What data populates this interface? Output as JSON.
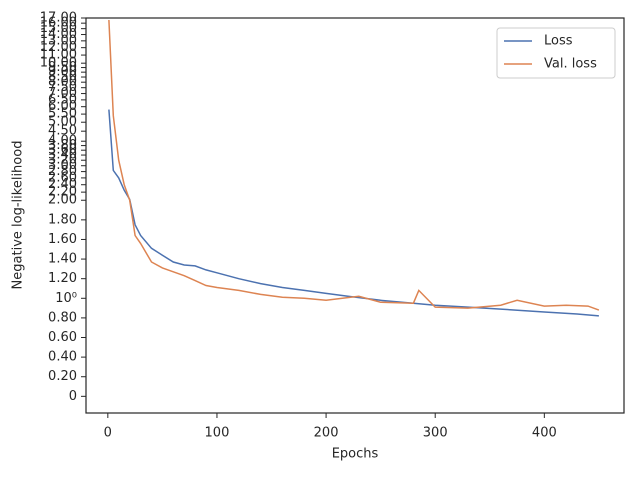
{
  "chart_data": {
    "type": "line",
    "xlabel": "Epochs",
    "ylabel": "Negative log-likelihood",
    "yscale": "symlog",
    "linthresh": 2,
    "xlim": [
      -20,
      473
    ],
    "ylim": [
      -0.17,
      17
    ],
    "xticks": [
      0,
      100,
      200,
      300,
      400
    ],
    "yticks": [
      0,
      {
        "value": 0.2,
        "label": "0.20"
      },
      {
        "value": 0.4,
        "label": "0.40"
      },
      {
        "value": 0.6,
        "label": "0.60"
      },
      {
        "value": 0.8,
        "label": "0.80"
      },
      {
        "value": 1,
        "label": "10⁰"
      },
      {
        "value": 1.2,
        "label": "1.20"
      },
      {
        "value": 1.4,
        "label": "1.40"
      },
      {
        "value": 1.6,
        "label": "1.60"
      },
      {
        "value": 1.8,
        "label": "1.80"
      },
      {
        "value": 2,
        "label": "2.00"
      },
      {
        "value": 2.2,
        "label": "2.20"
      },
      {
        "value": 2.4,
        "label": "2.40"
      },
      {
        "value": 2.6,
        "label": "2.60"
      },
      {
        "value": 2.8,
        "label": "2.80"
      },
      {
        "value": 3,
        "label": "3.00"
      },
      {
        "value": 3.2,
        "label": "3.20"
      },
      {
        "value": 3.4,
        "label": "3.40"
      },
      {
        "value": 3.6,
        "label": "3.60"
      },
      {
        "value": 3.8,
        "label": "3.80"
      },
      {
        "value": 4,
        "label": "4.00"
      },
      {
        "value": 4.5,
        "label": "4.50"
      },
      {
        "value": 5,
        "label": "5.00"
      },
      {
        "value": 5.5,
        "label": "5.50"
      },
      {
        "value": 6,
        "label": "6.00"
      },
      {
        "value": 6.5,
        "label": "6.50"
      },
      {
        "value": 7,
        "label": "7.00"
      },
      {
        "value": 7.5,
        "label": "7.50"
      },
      {
        "value": 8,
        "label": "8.00"
      },
      {
        "value": 8.5,
        "label": "8.50"
      },
      {
        "value": 9,
        "label": "9.00"
      },
      {
        "value": 9.5,
        "label": "9.50"
      },
      {
        "value": 10,
        "label": "10.00"
      },
      {
        "value": 11,
        "label": "11.00"
      },
      {
        "value": 12,
        "label": "12.00"
      },
      {
        "value": 13,
        "label": "13.00"
      },
      {
        "value": 14,
        "label": "14.00"
      },
      {
        "value": 15,
        "label": "15.00"
      },
      {
        "value": 16,
        "label": "16.00"
      },
      {
        "value": 17,
        "label": "17.00"
      }
    ],
    "legend": "upper right",
    "series": [
      {
        "name": "Loss",
        "color": "#4c72b0",
        "x": [
          1,
          5,
          10,
          15,
          20,
          25,
          30,
          40,
          50,
          60,
          70,
          80,
          90,
          100,
          120,
          140,
          160,
          180,
          200,
          220,
          250,
          280,
          300,
          330,
          360,
          400,
          430,
          450
        ],
        "values": [
          5.8,
          2.84,
          2.6,
          2.25,
          2.02,
          1.75,
          1.64,
          1.51,
          1.44,
          1.37,
          1.34,
          1.33,
          1.29,
          1.26,
          1.2,
          1.15,
          1.11,
          1.08,
          1.05,
          1.02,
          0.98,
          0.95,
          0.93,
          0.91,
          0.89,
          0.86,
          0.84,
          0.82
        ]
      },
      {
        "name": "Val. loss",
        "color": "#dd8452",
        "x": [
          1,
          5,
          10,
          15,
          20,
          25,
          30,
          40,
          50,
          60,
          70,
          80,
          90,
          100,
          120,
          140,
          160,
          180,
          200,
          230,
          250,
          280,
          285,
          300,
          330,
          360,
          375,
          400,
          420,
          440,
          450
        ],
        "values": [
          16.6,
          5.4,
          3.2,
          2.4,
          2.0,
          1.64,
          1.56,
          1.37,
          1.31,
          1.27,
          1.23,
          1.18,
          1.13,
          1.11,
          1.08,
          1.04,
          1.01,
          1.0,
          0.98,
          1.02,
          0.96,
          0.95,
          1.08,
          0.91,
          0.9,
          0.93,
          0.98,
          0.92,
          0.93,
          0.92,
          0.88
        ]
      }
    ]
  }
}
